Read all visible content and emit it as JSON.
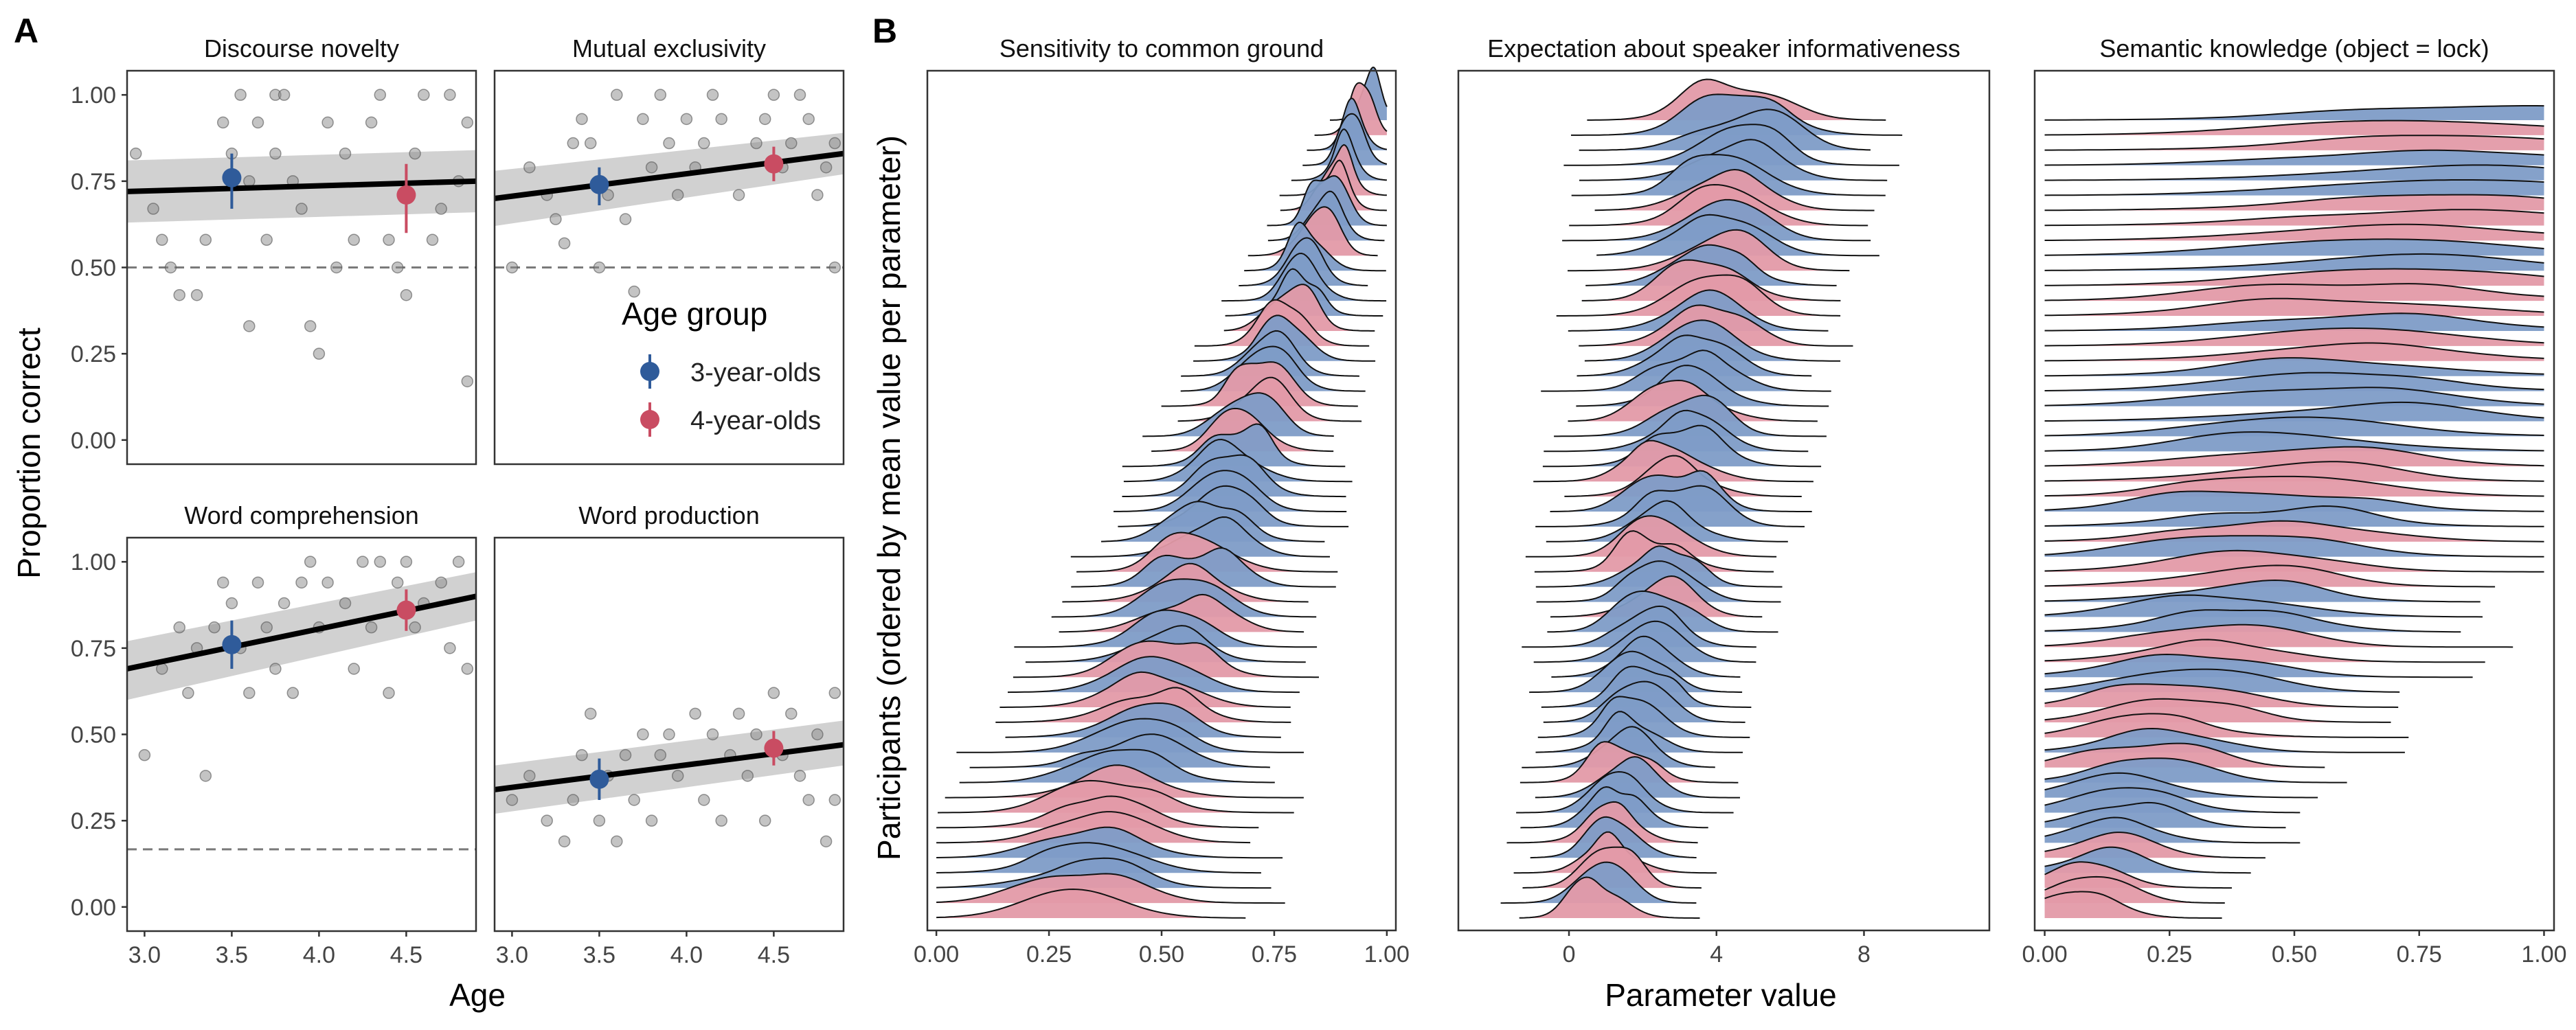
{
  "panel_letters": [
    "A",
    "B"
  ],
  "colors": {
    "group_3": "#2f5b9a",
    "group_4": "#c94c62",
    "ridge_3": "#7e9cc7",
    "ridge_4": "#e39aa8",
    "ribbon": "#cccccc",
    "points": "#8a8a8a",
    "chance_line": "#7a7a7a",
    "frame": "#333333"
  },
  "chart_data": [
    {
      "type": "scatter",
      "title": "Discourse novelty",
      "xlim": [
        2.9,
        4.9
      ],
      "ylim": [
        -0.07,
        1.07
      ],
      "chance": 0.5,
      "fit": {
        "x": [
          2.9,
          4.9
        ],
        "y": [
          0.72,
          0.75
        ],
        "ci_low": [
          0.63,
          0.66
        ],
        "ci_high": [
          0.81,
          0.84
        ]
      },
      "group_means": [
        {
          "group": "3-year-olds",
          "x": 3.5,
          "y": 0.76,
          "ylow": 0.67,
          "yhigh": 0.83
        },
        {
          "group": "4-year-olds",
          "x": 4.5,
          "y": 0.71,
          "ylow": 0.6,
          "yhigh": 0.8
        }
      ],
      "points": [
        [
          2.95,
          0.83
        ],
        [
          3.05,
          0.67
        ],
        [
          3.1,
          0.58
        ],
        [
          3.15,
          0.5
        ],
        [
          3.2,
          0.42
        ],
        [
          3.3,
          0.42
        ],
        [
          3.35,
          0.58
        ],
        [
          3.45,
          0.92
        ],
        [
          3.5,
          0.83
        ],
        [
          3.55,
          1.0
        ],
        [
          3.6,
          0.33
        ],
        [
          3.6,
          0.75
        ],
        [
          3.65,
          0.92
        ],
        [
          3.7,
          0.58
        ],
        [
          3.75,
          1.0
        ],
        [
          3.75,
          0.83
        ],
        [
          3.8,
          1.0
        ],
        [
          3.85,
          0.75
        ],
        [
          3.9,
          0.67
        ],
        [
          3.95,
          0.33
        ],
        [
          4.0,
          0.25
        ],
        [
          4.05,
          0.92
        ],
        [
          4.1,
          0.5
        ],
        [
          4.15,
          0.83
        ],
        [
          4.2,
          0.58
        ],
        [
          4.3,
          0.92
        ],
        [
          4.35,
          1.0
        ],
        [
          4.4,
          0.58
        ],
        [
          4.45,
          0.5
        ],
        [
          4.5,
          0.42
        ],
        [
          4.55,
          0.83
        ],
        [
          4.6,
          1.0
        ],
        [
          4.65,
          0.58
        ],
        [
          4.7,
          0.67
        ],
        [
          4.75,
          1.0
        ],
        [
          4.8,
          0.75
        ],
        [
          4.85,
          0.17
        ],
        [
          4.85,
          0.92
        ]
      ]
    },
    {
      "type": "scatter",
      "title": "Mutual exclusivity",
      "xlim": [
        2.9,
        4.9
      ],
      "ylim": [
        -0.07,
        1.07
      ],
      "chance": 0.5,
      "fit": {
        "x": [
          2.9,
          4.9
        ],
        "y": [
          0.7,
          0.83
        ],
        "ci_low": [
          0.62,
          0.77
        ],
        "ci_high": [
          0.78,
          0.89
        ]
      },
      "group_means": [
        {
          "group": "3-year-olds",
          "x": 3.5,
          "y": 0.74,
          "ylow": 0.68,
          "yhigh": 0.79
        },
        {
          "group": "4-year-olds",
          "x": 4.5,
          "y": 0.8,
          "ylow": 0.75,
          "yhigh": 0.85
        }
      ],
      "points": [
        [
          3.0,
          0.5
        ],
        [
          3.1,
          0.79
        ],
        [
          3.2,
          0.71
        ],
        [
          3.25,
          0.64
        ],
        [
          3.3,
          0.57
        ],
        [
          3.35,
          0.86
        ],
        [
          3.4,
          0.93
        ],
        [
          3.45,
          0.86
        ],
        [
          3.5,
          0.5
        ],
        [
          3.55,
          0.71
        ],
        [
          3.6,
          1.0
        ],
        [
          3.65,
          0.64
        ],
        [
          3.7,
          0.43
        ],
        [
          3.75,
          0.93
        ],
        [
          3.8,
          0.79
        ],
        [
          3.85,
          1.0
        ],
        [
          3.9,
          0.86
        ],
        [
          3.95,
          0.71
        ],
        [
          4.0,
          0.93
        ],
        [
          4.05,
          0.79
        ],
        [
          4.1,
          0.86
        ],
        [
          4.15,
          1.0
        ],
        [
          4.2,
          0.93
        ],
        [
          4.3,
          0.71
        ],
        [
          4.4,
          0.86
        ],
        [
          4.45,
          0.93
        ],
        [
          4.5,
          1.0
        ],
        [
          4.55,
          0.79
        ],
        [
          4.6,
          0.86
        ],
        [
          4.65,
          1.0
        ],
        [
          4.7,
          0.93
        ],
        [
          4.75,
          0.71
        ],
        [
          4.8,
          0.79
        ],
        [
          4.85,
          0.5
        ],
        [
          4.85,
          0.86
        ]
      ]
    },
    {
      "type": "scatter",
      "title": "Word comprehension",
      "xlim": [
        2.9,
        4.9
      ],
      "ylim": [
        -0.07,
        1.07
      ],
      "chance": 0.167,
      "fit": {
        "x": [
          2.9,
          4.9
        ],
        "y": [
          0.69,
          0.9
        ],
        "ci_low": [
          0.6,
          0.83
        ],
        "ci_high": [
          0.77,
          0.97
        ]
      },
      "group_means": [
        {
          "group": "3-year-olds",
          "x": 3.5,
          "y": 0.76,
          "ylow": 0.69,
          "yhigh": 0.83
        },
        {
          "group": "4-year-olds",
          "x": 4.5,
          "y": 0.86,
          "ylow": 0.8,
          "yhigh": 0.92
        }
      ],
      "points": [
        [
          3.0,
          0.44
        ],
        [
          3.1,
          0.69
        ],
        [
          3.2,
          0.81
        ],
        [
          3.25,
          0.62
        ],
        [
          3.3,
          0.75
        ],
        [
          3.35,
          0.38
        ],
        [
          3.4,
          0.81
        ],
        [
          3.45,
          0.94
        ],
        [
          3.5,
          0.88
        ],
        [
          3.55,
          0.75
        ],
        [
          3.6,
          0.62
        ],
        [
          3.65,
          0.94
        ],
        [
          3.7,
          0.81
        ],
        [
          3.75,
          0.69
        ],
        [
          3.8,
          0.88
        ],
        [
          3.85,
          0.62
        ],
        [
          3.9,
          0.94
        ],
        [
          3.95,
          1.0
        ],
        [
          4.0,
          0.81
        ],
        [
          4.05,
          0.94
        ],
        [
          4.15,
          0.88
        ],
        [
          4.2,
          0.69
        ],
        [
          4.25,
          1.0
        ],
        [
          4.3,
          0.81
        ],
        [
          4.35,
          1.0
        ],
        [
          4.4,
          0.62
        ],
        [
          4.45,
          0.94
        ],
        [
          4.5,
          1.0
        ],
        [
          4.55,
          0.81
        ],
        [
          4.6,
          0.88
        ],
        [
          4.7,
          0.94
        ],
        [
          4.75,
          0.75
        ],
        [
          4.8,
          1.0
        ],
        [
          4.85,
          0.69
        ]
      ]
    },
    {
      "type": "scatter",
      "title": "Word production",
      "xlim": [
        2.9,
        4.9
      ],
      "ylim": [
        -0.07,
        1.07
      ],
      "chance": null,
      "fit": {
        "x": [
          2.9,
          4.9
        ],
        "y": [
          0.34,
          0.47
        ],
        "ci_low": [
          0.27,
          0.41
        ],
        "ci_high": [
          0.41,
          0.54
        ]
      },
      "group_means": [
        {
          "group": "3-year-olds",
          "x": 3.5,
          "y": 0.37,
          "ylow": 0.31,
          "yhigh": 0.43
        },
        {
          "group": "4-year-olds",
          "x": 4.5,
          "y": 0.46,
          "ylow": 0.41,
          "yhigh": 0.51
        }
      ],
      "points": [
        [
          3.0,
          0.31
        ],
        [
          3.1,
          0.38
        ],
        [
          3.2,
          0.25
        ],
        [
          3.3,
          0.19
        ],
        [
          3.35,
          0.31
        ],
        [
          3.4,
          0.44
        ],
        [
          3.45,
          0.56
        ],
        [
          3.5,
          0.25
        ],
        [
          3.55,
          0.38
        ],
        [
          3.6,
          0.19
        ],
        [
          3.65,
          0.44
        ],
        [
          3.7,
          0.31
        ],
        [
          3.75,
          0.5
        ],
        [
          3.8,
          0.25
        ],
        [
          3.85,
          0.44
        ],
        [
          3.9,
          0.5
        ],
        [
          3.95,
          0.38
        ],
        [
          4.05,
          0.56
        ],
        [
          4.1,
          0.31
        ],
        [
          4.15,
          0.5
        ],
        [
          4.2,
          0.25
        ],
        [
          4.25,
          0.44
        ],
        [
          4.3,
          0.56
        ],
        [
          4.35,
          0.38
        ],
        [
          4.4,
          0.5
        ],
        [
          4.45,
          0.25
        ],
        [
          4.5,
          0.62
        ],
        [
          4.55,
          0.44
        ],
        [
          4.6,
          0.56
        ],
        [
          4.65,
          0.38
        ],
        [
          4.7,
          0.31
        ],
        [
          4.75,
          0.5
        ],
        [
          4.8,
          0.19
        ],
        [
          4.85,
          0.31
        ],
        [
          4.85,
          0.62
        ]
      ]
    },
    {
      "type": "area",
      "title": "Sensitivity to common ground",
      "xlim": [
        -0.02,
        1.02
      ],
      "rows": 54,
      "mean_range": [
        0.3,
        0.96
      ],
      "spread_range": [
        0.12,
        0.025
      ],
      "xticks": [
        "0.00",
        "0.25",
        "0.50",
        "0.75",
        "1.00"
      ],
      "xtick_values": [
        0,
        0.25,
        0.5,
        0.75,
        1.0
      ]
    },
    {
      "type": "area",
      "title": "Expectation about speaker informativeness",
      "xlim": [
        -3,
        11.4
      ],
      "rows": 54,
      "mean_range": [
        0.9,
        4.7
      ],
      "spread_range": [
        0.7,
        1.2
      ],
      "xticks": [
        "0",
        "4",
        "8"
      ],
      "xtick_values": [
        0,
        4,
        8
      ]
    },
    {
      "type": "area",
      "title": "Semantic knowledge (object = lock)",
      "xlim": [
        -0.02,
        1.02
      ],
      "rows": 54,
      "mean_range": [
        0.05,
        0.85
      ],
      "spread_range": [
        0.08,
        0.3
      ],
      "xticks": [
        "0.00",
        "0.25",
        "0.50",
        "0.75",
        "1.00"
      ],
      "xtick_values": [
        0,
        0.25,
        0.5,
        0.75,
        1.0
      ]
    }
  ],
  "labels": {
    "a_ylabel": "Proportion correct",
    "a_xlabel": "Age",
    "a_yticks": [
      "0.00",
      "0.25",
      "0.50",
      "0.75",
      "1.00"
    ],
    "a_ytick_values": [
      0,
      0.25,
      0.5,
      0.75,
      1.0
    ],
    "a_xticks": [
      "3.0",
      "3.5",
      "4.0",
      "4.5"
    ],
    "a_xtick_values": [
      3.0,
      3.5,
      4.0,
      4.5
    ],
    "b_ylabel": "Participants (ordered by mean value per parameter)",
    "b_xlabel": "Parameter value",
    "legend_title": "Age group",
    "legend_items": [
      "3-year-olds",
      "4-year-olds"
    ]
  }
}
